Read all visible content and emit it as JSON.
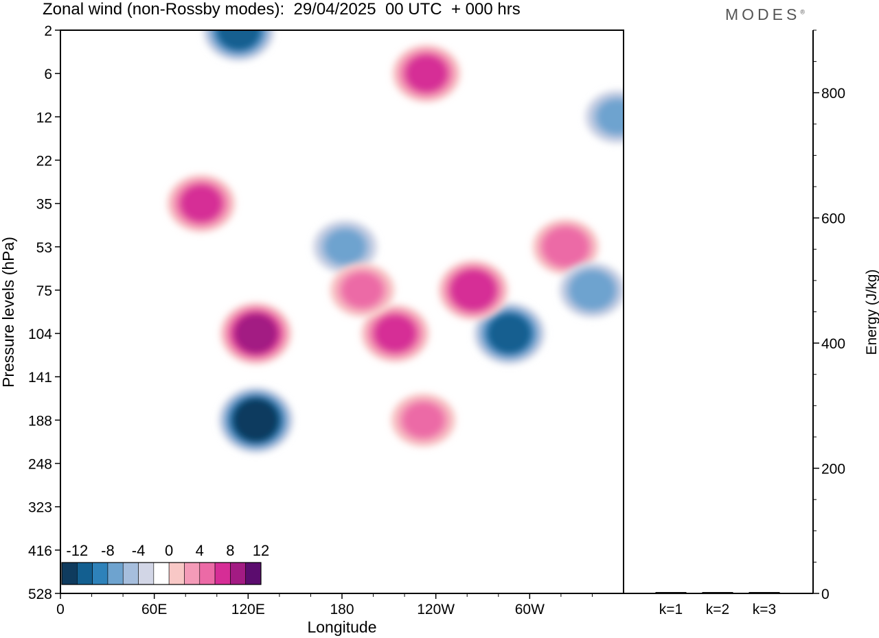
{
  "page": {
    "title": "Zonal wind (non-Rossby modes):  29/04/2025  00 UTC  + 000 hrs",
    "brand": "MODES",
    "brand_mark": "®"
  },
  "chart_data": [
    {
      "type": "heatmap",
      "title": "Zonal wind (non-Rossby modes):  29/04/2025  00 UTC  + 000 hrs",
      "xlabel": "Longitude",
      "ylabel": "Pressure levels (hPa)",
      "x_ticks": [
        "0",
        "60E",
        "120E",
        "180",
        "120W",
        "60W"
      ],
      "x_tick_degrees": [
        0,
        60,
        120,
        180,
        240,
        300
      ],
      "x_range_degrees": [
        0,
        360
      ],
      "y_ticks": [
        "2",
        "6",
        "12",
        "22",
        "35",
        "53",
        "75",
        "104",
        "141",
        "188",
        "248",
        "323",
        "416",
        "528"
      ],
      "legend": {
        "labels": [
          "-12",
          "-8",
          "-4",
          "0",
          "4",
          "8",
          "12"
        ],
        "colors": [
          "#0f3b5e",
          "#135f90",
          "#2e82ba",
          "#6ea3cf",
          "#a6bedd",
          "#d2d6e6",
          "#ffffff",
          "#f8c8c6",
          "#f49bb8",
          "#ec6aa6",
          "#d62d96",
          "#a31b83",
          "#5b0c6e"
        ],
        "placement": "bottom-left"
      },
      "features": [
        {
          "lon": 125,
          "plev": 188,
          "value": -12
        },
        {
          "lon": 114,
          "plev": 2,
          "value": -10
        },
        {
          "lon": 287,
          "plev": 104,
          "value": -10
        },
        {
          "lon": 182,
          "plev": 53,
          "value": -6
        },
        {
          "lon": 125,
          "plev": 104,
          "value": 10
        },
        {
          "lon": 90,
          "plev": 35,
          "value": 8
        },
        {
          "lon": 264,
          "plev": 75,
          "value": 9
        },
        {
          "lon": 214,
          "plev": 104,
          "value": 8
        },
        {
          "lon": 232,
          "plev": 188,
          "value": 6
        },
        {
          "lon": 193,
          "plev": 75,
          "value": 6
        },
        {
          "lon": 234,
          "plev": 6,
          "value": 8
        },
        {
          "lon": 323,
          "plev": 53,
          "value": 7
        },
        {
          "lon": 340,
          "plev": 75,
          "value": -7
        },
        {
          "lon": 356,
          "plev": 12,
          "value": -6
        }
      ]
    },
    {
      "type": "bar",
      "categories": [
        "k=1",
        "k=2",
        "k=3"
      ],
      "values": [
        1.5,
        1.0,
        0.8
      ],
      "ylabel": "Energy (J/kg)",
      "ylim": [
        0,
        900
      ],
      "y_ticks": [
        0,
        200,
        400,
        600,
        800
      ]
    }
  ]
}
